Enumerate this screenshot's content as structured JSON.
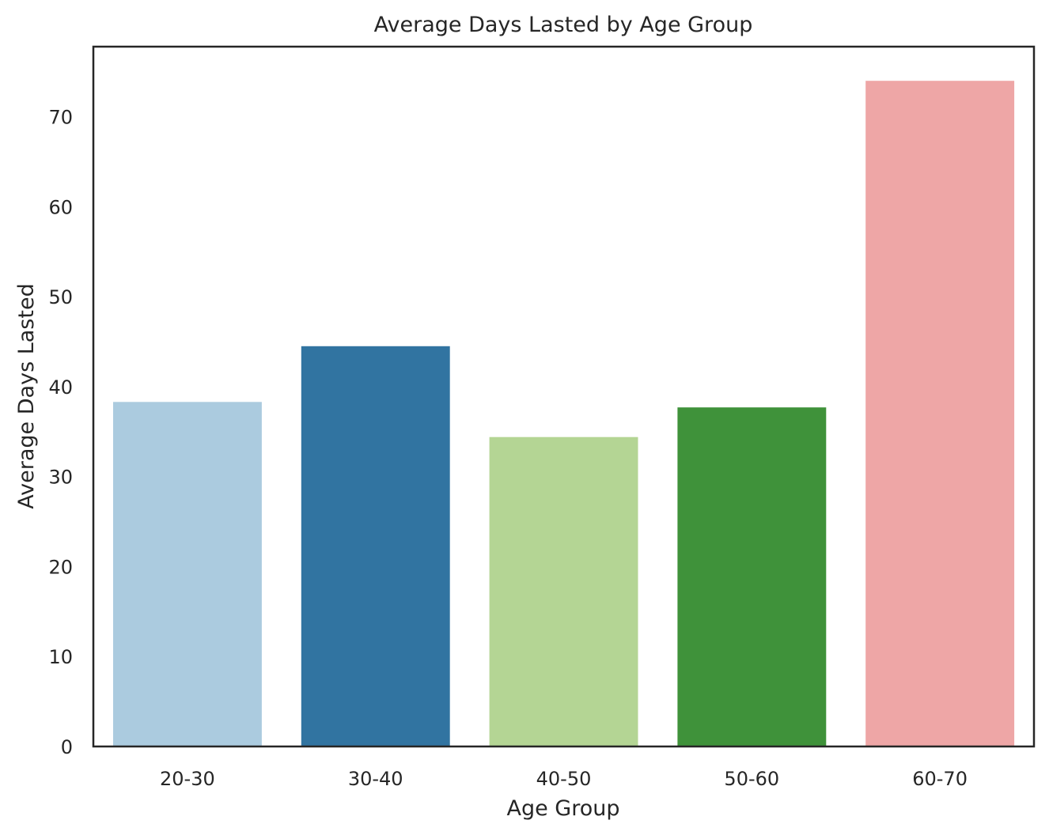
{
  "chart_data": {
    "type": "bar",
    "title": "Average Days Lasted by Age Group",
    "xlabel": "Age Group",
    "ylabel": "Average Days Lasted",
    "categories": [
      "20-30",
      "30-40",
      "40-50",
      "50-60",
      "60-70"
    ],
    "values": [
      38.3,
      44.5,
      34.4,
      37.7,
      74.0
    ],
    "colors": [
      "#abcbdf",
      "#3174a1",
      "#b4d594",
      "#3f923a",
      "#eea6a6"
    ],
    "ylim": [
      0,
      77.8
    ],
    "yticks": [
      0,
      10,
      20,
      30,
      40,
      50,
      60,
      70
    ],
    "grid": false,
    "legend": "none"
  }
}
